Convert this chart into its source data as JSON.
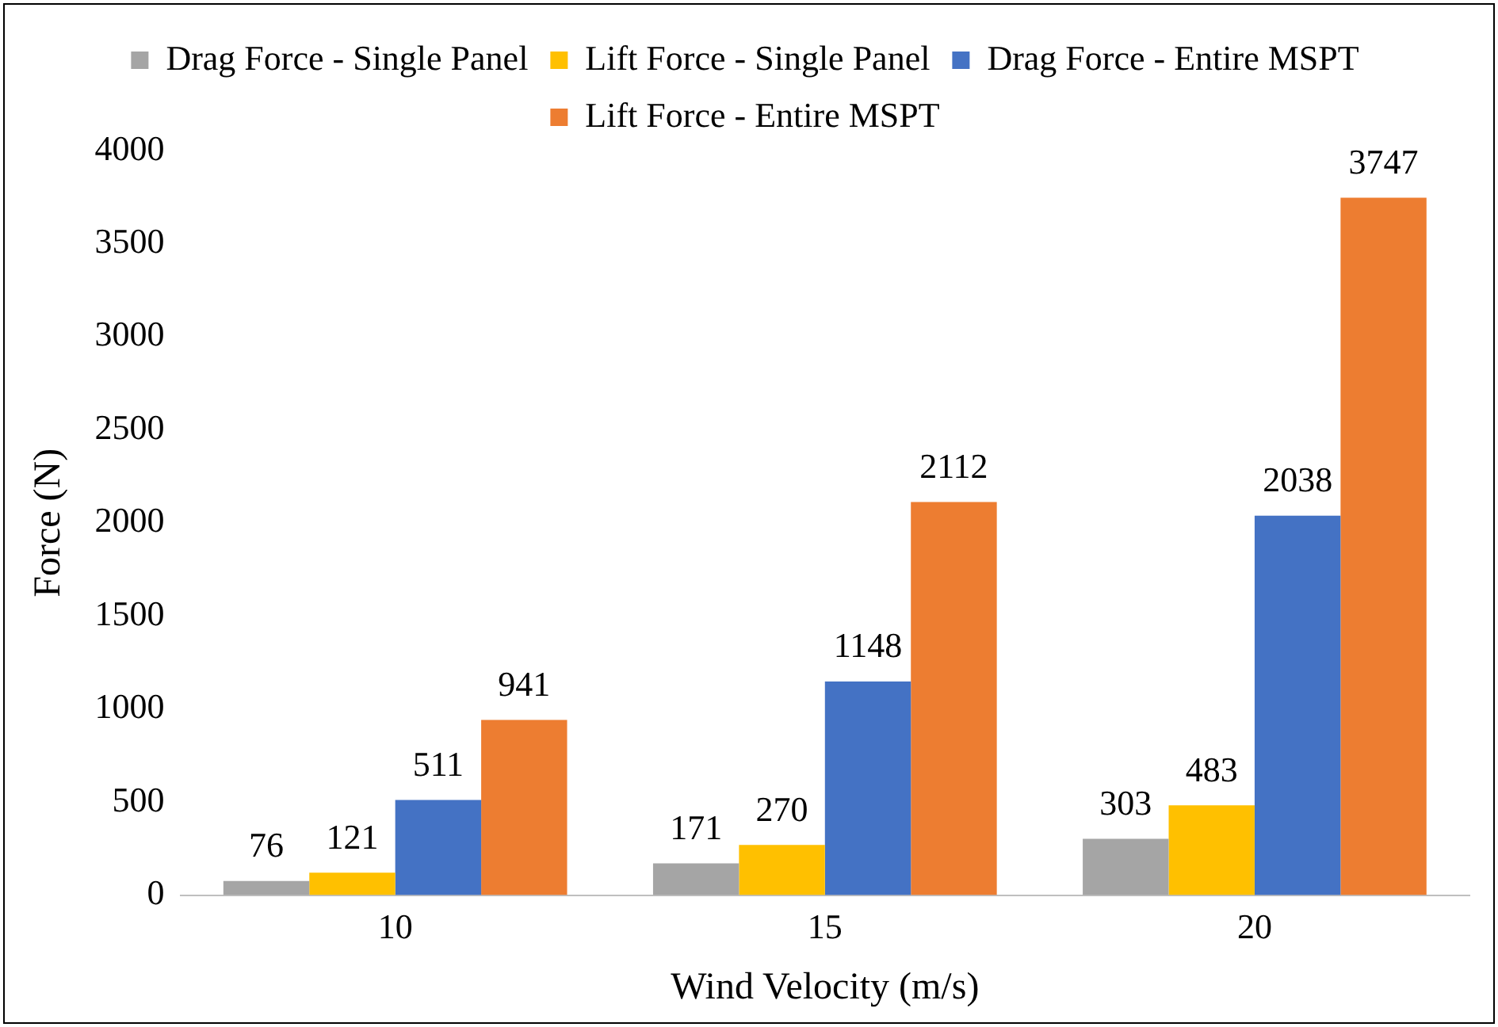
{
  "chart_data": {
    "type": "bar",
    "xlabel": "Wind Velocity (m/s)",
    "ylabel": "Force (N)",
    "categories": [
      "10",
      "15",
      "20"
    ],
    "series": [
      {
        "name": "Drag Force - Single Panel",
        "color": "#a5a5a5",
        "values": [
          76,
          171,
          303
        ]
      },
      {
        "name": "Lift Force - Single Panel",
        "color": "#ffc000",
        "values": [
          121,
          270,
          483
        ]
      },
      {
        "name": "Drag Force - Entire MSPT",
        "color": "#4472c4",
        "values": [
          511,
          1148,
          2038
        ]
      },
      {
        "name": "Lift Force - Entire MSPT",
        "color": "#ed7d31",
        "values": [
          941,
          2112,
          3747
        ]
      }
    ],
    "ylim": [
      0,
      4000
    ],
    "yticks": [
      0,
      500,
      1000,
      1500,
      2000,
      2500,
      3000,
      3500,
      4000
    ],
    "grid": false,
    "legend": "top",
    "data_labels": true
  }
}
